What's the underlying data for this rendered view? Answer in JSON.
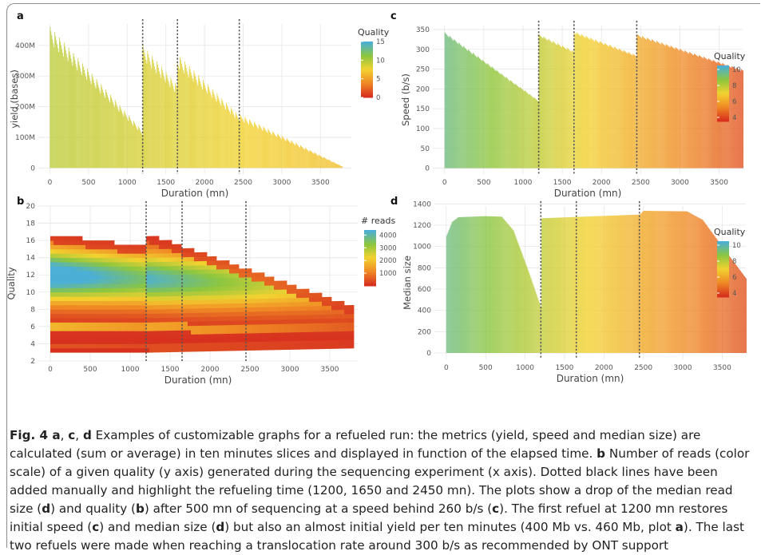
{
  "figure": {
    "caption": {
      "fig_label": "Fig. 4",
      "parts": [
        {
          "b": true,
          "t": " a"
        },
        {
          "t": ", "
        },
        {
          "b": true,
          "t": "c"
        },
        {
          "t": ", "
        },
        {
          "b": true,
          "t": "d"
        },
        {
          "t": " Examples of customizable graphs for a refueled run: the metrics (yield, speed and median size) are calculated (sum or average) in ten minutes slices and displayed in function of the elapsed time. "
        },
        {
          "b": true,
          "t": "b"
        },
        {
          "t": " Number of reads (color scale) of a given quality (y axis) generated during the sequencing experiment (x axis). Dotted black lines have been added manually and highlight the refueling time (1200, 1650 and 2450 mn). The plots show a drop of the median read size ("
        },
        {
          "b": true,
          "t": "d"
        },
        {
          "t": ") and quality ("
        },
        {
          "b": true,
          "t": "b"
        },
        {
          "t": ") after 500 mn of sequencing at a speed behind 260 b/s ("
        },
        {
          "b": true,
          "t": "c"
        },
        {
          "t": "). The first refuel at 1200 mn restores initial speed ("
        },
        {
          "b": true,
          "t": "c"
        },
        {
          "t": ") and median size ("
        },
        {
          "b": true,
          "t": "d"
        },
        {
          "t": ") but also an almost initial yield per ten minutes (400 Mb vs. 460 Mb, plot "
        },
        {
          "b": true,
          "t": "a"
        },
        {
          "t": "). The last two refuels were made when reaching a translocation rate around 300 b/s as recommended by ONT support"
        }
      ]
    }
  },
  "colors": {
    "gradient": [
      "#4bafd6",
      "#8cc63f",
      "#f2d230",
      "#f08a24",
      "#d7301f"
    ],
    "grid": "#e6e6e6",
    "axis_text": "#555555",
    "refuel_line": "#555555"
  },
  "chart_data": [
    {
      "panel_label": "a",
      "type": "bar",
      "xlabel": "Duration (mn)",
      "ylabel": "yield (bases)",
      "xlim": [
        -150,
        3900
      ],
      "ylim": [
        -20000000,
        470000000
      ],
      "xticks": [
        0,
        500,
        1000,
        1500,
        2000,
        2500,
        3000,
        3500
      ],
      "yticks": [
        0,
        100000000,
        200000000,
        300000000,
        400000000
      ],
      "ytick_labels": [
        "0",
        "100M",
        "200M",
        "300M",
        "400M"
      ],
      "refuel_lines_x": [
        1200,
        1650,
        2450
      ],
      "segments": [
        {
          "x_start": 0,
          "x_end": 1200,
          "y_start": 460000000,
          "y_end": 120000000
        },
        {
          "x_start": 1200,
          "x_end": 1650,
          "y_start": 400000000,
          "y_end": 270000000
        },
        {
          "x_start": 1650,
          "x_end": 2450,
          "y_start": 370000000,
          "y_end": 170000000
        },
        {
          "x_start": 2450,
          "x_end": 3780,
          "y_start": 175000000,
          "y_end": 5000000
        }
      ],
      "legend": {
        "title": "Quality",
        "min": 0,
        "max": 15,
        "ticks": [
          0,
          5,
          10,
          15
        ]
      },
      "color_value_start": 9.5,
      "color_value_end": 6.5
    },
    {
      "panel_label": "b",
      "type": "heatmap",
      "xlabel": "Duration (mn)",
      "ylabel": "Quality",
      "xlim": [
        -150,
        3850
      ],
      "ylim": [
        2,
        20
      ],
      "xticks": [
        0,
        500,
        1000,
        1500,
        2000,
        2500,
        3000,
        3500
      ],
      "yticks": [
        2,
        4,
        6,
        8,
        10,
        12,
        14,
        16,
        18,
        20
      ],
      "refuel_lines_x": [
        1200,
        1650,
        2450
      ],
      "legend": {
        "title": "# reads",
        "min": 0,
        "max": 4400,
        "ticks": [
          1000,
          2000,
          3000,
          4000
        ]
      },
      "bands": [
        {
          "x_start": 0,
          "x_end": 1200,
          "q_low_start": 3.0,
          "q_low_end": 3.0,
          "q_high_start": 16.5,
          "q_high_end": 15.0
        },
        {
          "x_start": 1200,
          "x_end": 3800,
          "q_low_start": 3.0,
          "q_low_end": 3.5,
          "q_high_start": 16.5,
          "q_high_end": 8.0
        }
      ],
      "peak_quality_start": 12,
      "peak_quality_end": 10.5
    },
    {
      "panel_label": "c",
      "type": "bar",
      "xlabel": "Duration (mn)",
      "ylabel": "Speed (b/s)",
      "xlim": [
        -150,
        3800
      ],
      "ylim": [
        -15,
        360
      ],
      "xticks": [
        0,
        500,
        1000,
        1500,
        2000,
        2500,
        3000,
        3500
      ],
      "yticks": [
        0,
        50,
        100,
        150,
        200,
        250,
        300,
        350
      ],
      "refuel_lines_x": [
        1200,
        1650,
        2450
      ],
      "segments": [
        {
          "x_start": 0,
          "x_end": 1200,
          "y_start": 343,
          "y_end": 170
        },
        {
          "x_start": 1200,
          "x_end": 1650,
          "y_start": 338,
          "y_end": 295
        },
        {
          "x_start": 1650,
          "x_end": 2450,
          "y_start": 345,
          "y_end": 285
        },
        {
          "x_start": 2450,
          "x_end": 3800,
          "y_start": 338,
          "y_end": 248
        }
      ],
      "legend": {
        "title": "Quality",
        "min": 3.5,
        "max": 10.5,
        "ticks": [
          4,
          6,
          8,
          10
        ]
      },
      "color_value_start": 9.5,
      "color_value_end": 4.2
    },
    {
      "panel_label": "d",
      "type": "bar",
      "xlabel": "Duration (mn)",
      "ylabel": "Median size",
      "xlim": [
        -150,
        3800
      ],
      "ylim": [
        -60,
        1380
      ],
      "xticks": [
        0,
        500,
        1000,
        1500,
        2000,
        2500,
        3000,
        3500
      ],
      "yticks": [
        0,
        200,
        400,
        600,
        800,
        1000,
        1200,
        1400
      ],
      "refuel_lines_x": [
        1200,
        1650,
        2450
      ],
      "profile": [
        [
          0,
          1100
        ],
        [
          70,
          1230
        ],
        [
          150,
          1275
        ],
        [
          500,
          1285
        ],
        [
          700,
          1280
        ],
        [
          850,
          1150
        ],
        [
          950,
          950
        ],
        [
          1050,
          750
        ],
        [
          1120,
          600
        ],
        [
          1200,
          430
        ],
        [
          1201,
          1265
        ],
        [
          2450,
          1300
        ],
        [
          2500,
          1335
        ],
        [
          3050,
          1330
        ],
        [
          3250,
          1250
        ],
        [
          3400,
          1100
        ],
        [
          3550,
          950
        ],
        [
          3650,
          850
        ],
        [
          3800,
          700
        ]
      ],
      "legend": {
        "title": "Quality",
        "min": 3.5,
        "max": 10.5,
        "ticks": [
          4,
          6,
          8,
          10
        ]
      },
      "color_value_start": 9.5,
      "color_value_end": 4.2
    }
  ]
}
